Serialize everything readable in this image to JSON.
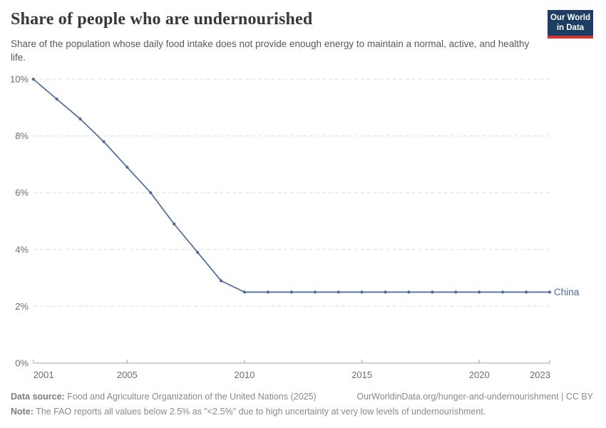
{
  "header": {
    "title": "Share of people who are undernourished",
    "subtitle": "Share of the population whose daily food intake does not provide enough energy to maintain a normal, active, and healthy life."
  },
  "logo": {
    "line1": "Our World",
    "line2": "in Data",
    "bg_color": "#1d3d63",
    "accent_color": "#cc3b32"
  },
  "chart_data": {
    "type": "line",
    "title": "Share of people who are undernourished",
    "xlabel": "",
    "ylabel": "",
    "x": [
      2001,
      2002,
      2003,
      2004,
      2005,
      2006,
      2007,
      2008,
      2009,
      2010,
      2011,
      2012,
      2013,
      2014,
      2015,
      2016,
      2017,
      2018,
      2019,
      2020,
      2021,
      2022,
      2023
    ],
    "series": [
      {
        "name": "China",
        "color": "#4c6a9c",
        "values": [
          10,
          9.3,
          8.6,
          7.8,
          6.9,
          6,
          4.9,
          3.9,
          2.9,
          2.5,
          2.5,
          2.5,
          2.5,
          2.5,
          2.5,
          2.5,
          2.5,
          2.5,
          2.5,
          2.5,
          2.5,
          2.5,
          2.5
        ]
      }
    ],
    "xlim": [
      2001,
      2023
    ],
    "ylim": [
      0,
      10
    ],
    "xticks": [
      2001,
      2005,
      2010,
      2015,
      2020,
      2023
    ],
    "yticks": [
      0,
      2,
      4,
      6,
      8,
      10
    ],
    "ytick_suffix": "%",
    "grid": "horizontal-dashed",
    "grid_color": "#dcdcdc",
    "axis_color": "#a5a5a5",
    "tick_label_color": "#6e6e6e",
    "legend_position": "end-of-line-label"
  },
  "footer": {
    "source_label": "Data source:",
    "source_text": " Food and Agriculture Organization of the United Nations (2025)",
    "attribution": "OurWorldinData.org/hunger-and-undernourishment | CC BY",
    "note_label": "Note:",
    "note_text": " The FAO reports all values below 2.5% as \"<2.5%\" due to high uncertainty at very low levels of undernourishment."
  }
}
